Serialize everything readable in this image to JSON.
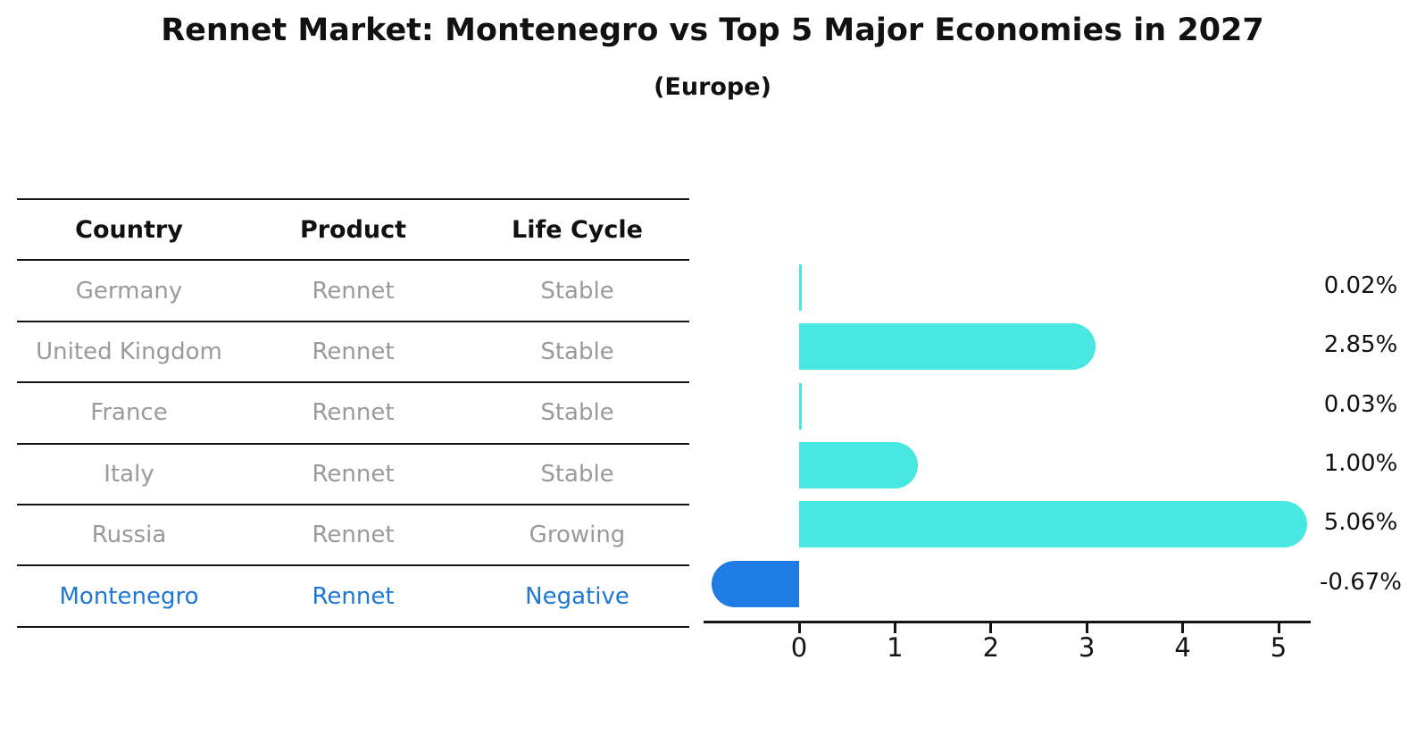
{
  "header": {
    "title": "Rennet Market: Montenegro vs Top 5 Major Economies in 2027",
    "subtitle": "(Europe)"
  },
  "table": {
    "columns": [
      "Country",
      "Product",
      "Life Cycle"
    ],
    "rows": [
      {
        "country": "Germany",
        "product": "Rennet",
        "life_cycle": "Stable",
        "highlight": false
      },
      {
        "country": "United Kingdom",
        "product": "Rennet",
        "life_cycle": "Stable",
        "highlight": false
      },
      {
        "country": "France",
        "product": "Rennet",
        "life_cycle": "Stable",
        "highlight": false
      },
      {
        "country": "Italy",
        "product": "Rennet",
        "life_cycle": "Stable",
        "highlight": false
      },
      {
        "country": "Russia",
        "product": "Rennet",
        "life_cycle": "Growing",
        "highlight": false
      },
      {
        "country": "Montenegro",
        "product": "Rennet",
        "life_cycle": "Negative",
        "highlight": true
      }
    ]
  },
  "chart_data": {
    "type": "bar",
    "orientation": "horizontal",
    "title": "Rennet Market: Montenegro vs Top 5 Major Economies in 2027 (Europe)",
    "categories": [
      "Germany",
      "United Kingdom",
      "France",
      "Italy",
      "Russia",
      "Montenegro"
    ],
    "values": [
      0.02,
      2.85,
      0.03,
      1.0,
      5.06,
      -0.67
    ],
    "labels": [
      "0.02%",
      "2.85%",
      "0.03%",
      "1.00%",
      "5.06%",
      "-0.67%"
    ],
    "x_ticks": [
      0,
      1,
      2,
      3,
      4,
      5
    ],
    "xlim": [
      -1.0,
      5.35
    ],
    "unit": "% growth",
    "grid": false,
    "legend": "none",
    "highlight_index": 5,
    "highlight_style": "dotted-border",
    "colors": {
      "bar": "#49e7e1",
      "highlight_bar": "#1e7ce4",
      "highlight_text": "#1f77d4",
      "table_text": "#9a9a9a",
      "axis": "#141414"
    }
  }
}
